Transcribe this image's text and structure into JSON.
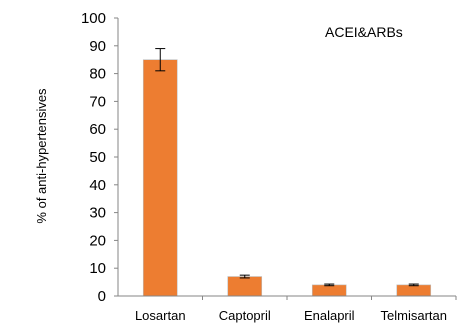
{
  "chart_data": {
    "type": "bar",
    "categories": [
      "Losartan",
      "Captopril",
      "Enalapril",
      "Telmisartan"
    ],
    "values": [
      85,
      7,
      4,
      4
    ],
    "errors": [
      4,
      0.5,
      0.3,
      0.3
    ],
    "ylabel": "% of anti-hypertensives",
    "xlabel": "",
    "ylim": [
      0,
      100
    ],
    "yticks": [
      "0",
      "10",
      "20",
      "30",
      "40",
      "50",
      "60",
      "70",
      "80",
      "90",
      "100"
    ],
    "annotation": "ACEI&ARBs",
    "grid": false,
    "bar_color": "#ED7D31",
    "bar_edge_color": "#C0C0C0"
  }
}
